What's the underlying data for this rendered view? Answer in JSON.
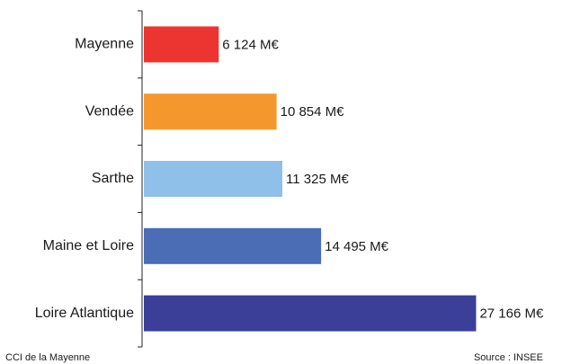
{
  "chart_data": {
    "type": "hbar",
    "categories": [
      "Mayenne",
      "Vendée",
      "Sarthe",
      "Maine et Loire",
      "Loire Atlantique"
    ],
    "values": [
      6124,
      10854,
      11325,
      14495,
      27166
    ],
    "value_labels": [
      "6 124 M€",
      "10 854 M€",
      "11 325 M€",
      "14 495 M€",
      "27 166 M€"
    ],
    "colors": [
      "#ec3430",
      "#f4982e",
      "#8fc0e9",
      "#4a6db5",
      "#3b3f97"
    ],
    "xlim": [
      0,
      30000
    ],
    "credit": "CCI de la Mayenne",
    "source": "Source : INSEE"
  }
}
